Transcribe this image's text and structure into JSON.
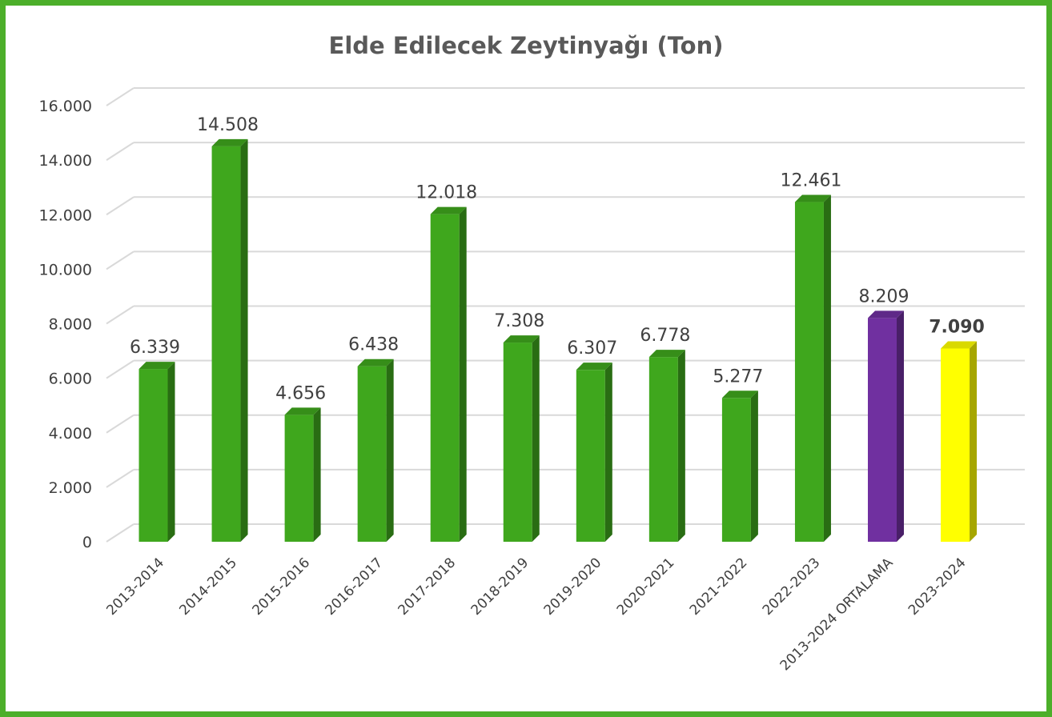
{
  "chart_data": {
    "type": "bar",
    "title": "Elde Edilecek Zeytinyağı (Ton)",
    "xlabel": "",
    "ylabel": "",
    "ylim": [
      0,
      16000
    ],
    "yticks": [
      "0",
      "2.000",
      "4.000",
      "6.000",
      "8.000",
      "10.000",
      "12.000",
      "14.000",
      "16.000"
    ],
    "grid": true,
    "categories": [
      "2013-2014",
      "2014-2015",
      "2015-2016",
      "2016-2017",
      "2017-2018",
      "2018-2019",
      "2019-2020",
      "2020-2021",
      "2021-2022",
      "2022-2023",
      "2013-2024 ORTALAMA",
      "2023-2024"
    ],
    "values": [
      6339,
      14508,
      4656,
      6438,
      12018,
      7308,
      6307,
      6778,
      5277,
      12461,
      8209,
      7090
    ],
    "data_labels": [
      "6.339",
      "14.508",
      "4.656",
      "6.438",
      "12.018",
      "7.308",
      "6.307",
      "6.778",
      "5.277",
      "12.461",
      "8.209",
      "7.090"
    ],
    "bar_colors": [
      "#3fa71d",
      "#3fa71d",
      "#3fa71d",
      "#3fa71d",
      "#3fa71d",
      "#3fa71d",
      "#3fa71d",
      "#3fa71d",
      "#3fa71d",
      "#3fa71d",
      "#7030a0",
      "#ffff00"
    ],
    "bold_labels": [
      false,
      false,
      false,
      false,
      false,
      false,
      false,
      false,
      false,
      false,
      false,
      true
    ]
  },
  "colors": {
    "border": "#4caf2a",
    "grid": "#d9d9d9",
    "text": "#404040",
    "title": "#595959"
  }
}
